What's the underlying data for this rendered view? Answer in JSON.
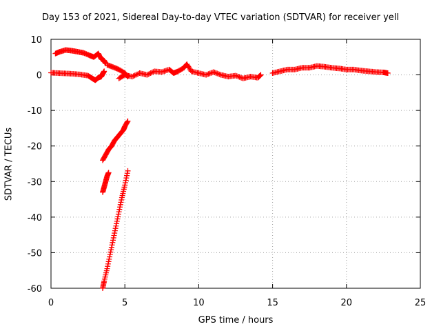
{
  "chart_data": {
    "type": "scatter",
    "title": "Day 153 of 2021, Sidereal Day-to-day VTEC variation (SDTVAR) for receiver yell",
    "xlabel": "GPS time / hours",
    "ylabel": "SDTVAR / TECUs",
    "xlim": [
      0,
      25
    ],
    "ylim": [
      -60,
      10
    ],
    "xticks": [
      0,
      5,
      10,
      15,
      20,
      25
    ],
    "yticks": [
      -60,
      -50,
      -40,
      -30,
      -20,
      -10,
      0,
      10
    ],
    "grid": true,
    "marker": "+",
    "color": "#ff0000",
    "series": [
      {
        "points": [
          [
            0.0,
            0.6
          ],
          [
            0.5,
            0.5
          ],
          [
            1.0,
            0.4
          ],
          [
            1.5,
            0.3
          ],
          [
            2.0,
            0.1
          ],
          [
            2.5,
            -0.2
          ],
          [
            2.8,
            -1.0
          ],
          [
            3.0,
            -1.5
          ],
          [
            3.2,
            -0.8
          ],
          [
            3.4,
            -0.5
          ],
          [
            3.5,
            0.3
          ],
          [
            3.6,
            1.0
          ]
        ]
      },
      {
        "points": [
          [
            0.3,
            6.0
          ],
          [
            0.6,
            6.5
          ],
          [
            1.0,
            7.0
          ],
          [
            1.4,
            6.8
          ],
          [
            1.8,
            6.5
          ],
          [
            2.2,
            6.2
          ],
          [
            2.6,
            5.5
          ],
          [
            2.9,
            5.0
          ],
          [
            3.2,
            6.0
          ],
          [
            3.4,
            4.5
          ],
          [
            3.6,
            4.0
          ],
          [
            3.7,
            3.2
          ]
        ]
      },
      {
        "points": [
          [
            3.8,
            2.8
          ],
          [
            4.2,
            2.2
          ],
          [
            4.6,
            1.5
          ],
          [
            5.0,
            0.5
          ],
          [
            5.2,
            -0.5
          ]
        ]
      },
      {
        "points": [
          [
            4.6,
            -1.0
          ],
          [
            5.0,
            0.0
          ],
          [
            5.5,
            -0.5
          ],
          [
            6.0,
            0.5
          ],
          [
            6.5,
            0.0
          ],
          [
            7.0,
            1.0
          ],
          [
            7.5,
            0.8
          ],
          [
            8.0,
            1.5
          ],
          [
            8.3,
            0.5
          ],
          [
            8.6,
            1.0
          ],
          [
            9.0,
            2.0
          ],
          [
            9.2,
            3.0
          ],
          [
            9.5,
            1.0
          ],
          [
            10.0,
            0.5
          ],
          [
            10.5,
            0.0
          ],
          [
            11.0,
            0.8
          ],
          [
            11.5,
            0.0
          ],
          [
            12.0,
            -0.5
          ],
          [
            12.5,
            -0.2
          ],
          [
            13.0,
            -1.0
          ],
          [
            13.5,
            -0.5
          ],
          [
            14.0,
            -0.8
          ],
          [
            14.2,
            0.0
          ]
        ]
      },
      {
        "points": [
          [
            15.0,
            0.5
          ],
          [
            15.5,
            1.0
          ],
          [
            16.0,
            1.5
          ],
          [
            16.5,
            1.5
          ],
          [
            17.0,
            2.0
          ],
          [
            17.5,
            2.0
          ],
          [
            18.0,
            2.5
          ],
          [
            18.5,
            2.3
          ],
          [
            19.0,
            2.0
          ],
          [
            19.5,
            1.8
          ],
          [
            20.0,
            1.5
          ],
          [
            20.5,
            1.5
          ],
          [
            21.0,
            1.2
          ],
          [
            21.5,
            1.0
          ],
          [
            22.0,
            0.8
          ],
          [
            22.5,
            0.7
          ],
          [
            22.8,
            0.5
          ]
        ]
      },
      {
        "points": [
          [
            3.5,
            -24.0
          ],
          [
            3.7,
            -22.5
          ],
          [
            3.9,
            -21.0
          ],
          [
            4.1,
            -20.0
          ],
          [
            4.3,
            -18.5
          ],
          [
            4.5,
            -17.5
          ],
          [
            4.7,
            -16.5
          ],
          [
            4.9,
            -15.5
          ],
          [
            5.0,
            -14.5
          ],
          [
            5.2,
            -13.0
          ]
        ]
      },
      {
        "points": [
          [
            3.5,
            -33.0
          ],
          [
            3.6,
            -31.5
          ],
          [
            3.7,
            -30.0
          ],
          [
            3.8,
            -28.5
          ],
          [
            3.9,
            -27.5
          ]
        ]
      },
      {
        "points": [
          [
            3.5,
            -60.0
          ],
          [
            3.6,
            -58.0
          ],
          [
            3.8,
            -54.5
          ],
          [
            4.0,
            -50.5
          ],
          [
            4.2,
            -46.5
          ],
          [
            4.4,
            -42.5
          ],
          [
            4.6,
            -38.5
          ],
          [
            4.8,
            -34.5
          ],
          [
            5.0,
            -31.0
          ],
          [
            5.2,
            -27.0
          ]
        ]
      }
    ]
  }
}
